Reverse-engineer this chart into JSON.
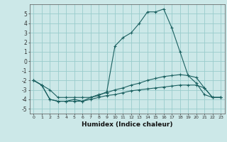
{
  "x": [
    0,
    1,
    2,
    3,
    4,
    5,
    6,
    7,
    8,
    9,
    10,
    11,
    12,
    13,
    14,
    15,
    16,
    17,
    18,
    19,
    20,
    21,
    22,
    23
  ],
  "series1": [
    -2.0,
    -2.5,
    -3.0,
    -3.8,
    -3.8,
    -3.8,
    -3.8,
    -3.8,
    -3.5,
    -3.3,
    -3.0,
    -2.8,
    -2.5,
    -2.3,
    -2.0,
    -1.8,
    -1.6,
    -1.5,
    -1.4,
    -1.5,
    -1.7,
    -2.8,
    -3.8,
    -3.8
  ],
  "series2": [
    -2.0,
    -2.5,
    -4.0,
    -4.2,
    -4.2,
    -4.2,
    -4.2,
    -4.0,
    -3.8,
    -3.6,
    -3.5,
    -3.3,
    -3.1,
    -3.0,
    -2.9,
    -2.8,
    -2.7,
    -2.6,
    -2.5,
    -2.5,
    -2.5,
    -2.8,
    -3.8,
    -3.8
  ],
  "series3": [
    -2.0,
    -2.5,
    -4.0,
    -4.2,
    -4.2,
    -4.0,
    -4.2,
    -3.8,
    -3.6,
    -3.2,
    1.6,
    2.5,
    3.0,
    4.0,
    5.2,
    5.2,
    5.5,
    3.5,
    1.0,
    -1.5,
    -2.3,
    -3.5,
    -3.8,
    -3.8
  ],
  "bg_color": "#cce8e8",
  "grid_color": "#99cccc",
  "line_color": "#1a6060",
  "xlabel": "Humidex (Indice chaleur)",
  "xlim": [
    -0.5,
    23.5
  ],
  "ylim": [
    -5.5,
    6.0
  ],
  "yticks": [
    -5,
    -4,
    -3,
    -2,
    -1,
    0,
    1,
    2,
    3,
    4,
    5
  ],
  "xticks": [
    0,
    1,
    2,
    3,
    4,
    5,
    6,
    7,
    8,
    9,
    10,
    11,
    12,
    13,
    14,
    15,
    16,
    17,
    18,
    19,
    20,
    21,
    22,
    23
  ]
}
